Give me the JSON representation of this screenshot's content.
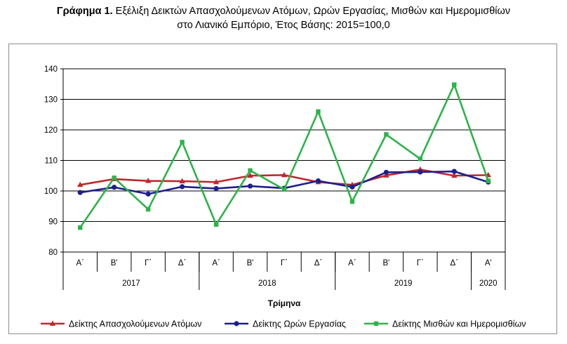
{
  "header": {
    "title_lead": "Γράφημα 1.",
    "title_rest": "Εξέλιξη Δεικτών Απασχολούμενων Ατόμων, Ωρών Εργασίας, Μισθών και Ημερομισθίων",
    "title_line2": "στο Λιανικό Εμπόριο, Έτος Βάσης: 2015=100,0"
  },
  "chart_data": {
    "type": "line",
    "title": "Γράφημα 1. Εξέλιξη Δεικτών Απασχολούμενων Ατόμων, Ωρών Εργασίας, Μισθών και Ημερομισθίων στο Λιανικό Εμπόριο, Έτος Βάσης: 2015=100,0",
    "xlabel": "Τρίμηνα",
    "ylabel": "",
    "ylim": [
      80,
      140
    ],
    "yticks": [
      80,
      90,
      100,
      110,
      120,
      130,
      140
    ],
    "categories": [
      "Α΄",
      "Β'",
      "Γ΄",
      "Δ΄",
      "Α΄",
      "Β'",
      "Γ΄",
      "Δ΄",
      "Α΄",
      "Β'",
      "Γ΄",
      "Δ΄",
      "Α'"
    ],
    "year_groups": [
      {
        "label": "2017",
        "count": 4
      },
      {
        "label": "2018",
        "count": 4
      },
      {
        "label": "2019",
        "count": 4
      },
      {
        "label": "2020",
        "count": 1
      }
    ],
    "grid": true,
    "legend_position": "bottom",
    "series": [
      {
        "name": "Δείκτης Απασχολούμενων Ατόμων",
        "color": "#c0272d",
        "marker": "triangle",
        "values": [
          102.0,
          103.9,
          103.3,
          103.2,
          102.9,
          105.0,
          105.2,
          102.9,
          102.0,
          105.1,
          107.0,
          105.0,
          105.2
        ]
      },
      {
        "name": "Δείκτης Ωρών Εργασίας",
        "color": "#1f1f8c",
        "marker": "circle",
        "values": [
          99.5,
          101.2,
          99.0,
          101.4,
          100.8,
          101.6,
          100.9,
          103.3,
          101.3,
          106.1,
          106.2,
          106.4,
          102.9
        ]
      },
      {
        "name": "Δείκτης Μισθών και Ημερομισθίων",
        "color": "#2db34a",
        "marker": "square",
        "values": [
          88.0,
          104.3,
          94.0,
          116.0,
          89.0,
          106.7,
          100.5,
          126.0,
          96.5,
          118.5,
          110.5,
          134.8,
          103.3
        ]
      }
    ]
  }
}
